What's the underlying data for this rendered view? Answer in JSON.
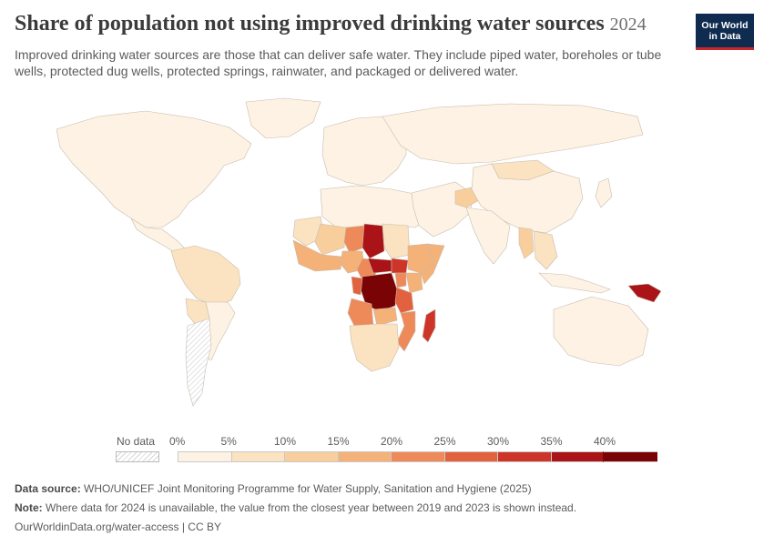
{
  "header": {
    "title": "Share of population not using improved drinking water sources",
    "year": "2024",
    "subtitle": "Improved drinking water sources are those that can deliver safe water. They include piped water, boreholes or tube wells, protected dug wells, protected springs, rainwater, and packaged or delivered water."
  },
  "logo": {
    "line1": "Our World",
    "line2": "in Data"
  },
  "legend": {
    "no_data_label": "No data",
    "bins": [
      {
        "label": "0%",
        "color": "#fdf2e3"
      },
      {
        "label": "5%",
        "color": "#fbe2c0"
      },
      {
        "label": "10%",
        "color": "#f8cf9c"
      },
      {
        "label": "15%",
        "color": "#f4b178"
      },
      {
        "label": "20%",
        "color": "#ee8a5a"
      },
      {
        "label": "25%",
        "color": "#e2623f"
      },
      {
        "label": "30%",
        "color": "#cc3528"
      },
      {
        "label": "35%",
        "color": "#aa1317"
      },
      {
        "label": "40%",
        "color": "#7a0306"
      }
    ]
  },
  "colors": {
    "no_data": "#e6e6e6",
    "border": "#ffffff",
    "outline": "#c7bcae"
  },
  "footer": {
    "source_label": "Data source:",
    "source_text": "WHO/UNICEF Joint Monitoring Programme for Water Supply, Sanitation and Hygiene (2025)",
    "note_label": "Note:",
    "note_text": "Where data for 2024 is unavailable, the value from the closest year between 2019 and 2023 is shown instead.",
    "link": "OurWorldinData.org/water-access | CC BY"
  },
  "map_data": {
    "regions": [
      {
        "name": "North America",
        "bin": 0
      },
      {
        "name": "Greenland",
        "bin": 0
      },
      {
        "name": "Central America",
        "bin": 0
      },
      {
        "name": "Northern South America",
        "bin": 1
      },
      {
        "name": "Bolivia",
        "bin": 1
      },
      {
        "name": "Southern South America",
        "bin": 0
      },
      {
        "name": "Argentina",
        "bin": -1
      },
      {
        "name": "Europe",
        "bin": 0
      },
      {
        "name": "Russia",
        "bin": 0
      },
      {
        "name": "North Africa",
        "bin": 0
      },
      {
        "name": "Mauritania",
        "bin": 1
      },
      {
        "name": "Mali",
        "bin": 2
      },
      {
        "name": "Niger",
        "bin": 4
      },
      {
        "name": "Chad",
        "bin": 7
      },
      {
        "name": "Sudan",
        "bin": 1
      },
      {
        "name": "West Africa",
        "bin": 3
      },
      {
        "name": "Nigeria",
        "bin": 3
      },
      {
        "name": "Cameroon",
        "bin": 4
      },
      {
        "name": "Central African Republic",
        "bin": 7
      },
      {
        "name": "South Sudan",
        "bin": 6
      },
      {
        "name": "Ethiopia",
        "bin": 3
      },
      {
        "name": "Somalia",
        "bin": 3
      },
      {
        "name": "DR Congo",
        "bin": 8
      },
      {
        "name": "Congo",
        "bin": 5
      },
      {
        "name": "Kenya",
        "bin": 3
      },
      {
        "name": "Uganda",
        "bin": 4
      },
      {
        "name": "Tanzania",
        "bin": 5
      },
      {
        "name": "Angola",
        "bin": 4
      },
      {
        "name": "Zambia",
        "bin": 3
      },
      {
        "name": "Mozambique",
        "bin": 4
      },
      {
        "name": "Southern Africa",
        "bin": 1
      },
      {
        "name": "Madagascar",
        "bin": 6
      },
      {
        "name": "Middle East",
        "bin": 0
      },
      {
        "name": "Afghanistan",
        "bin": 2
      },
      {
        "name": "Mongolia",
        "bin": 1
      },
      {
        "name": "China",
        "bin": 0
      },
      {
        "name": "South Asia",
        "bin": 0
      },
      {
        "name": "Myanmar",
        "bin": 2
      },
      {
        "name": "Southeast Asia",
        "bin": 1
      },
      {
        "name": "Indonesia",
        "bin": 0
      },
      {
        "name": "Papua New Guinea",
        "bin": 7
      },
      {
        "name": "Australia",
        "bin": 0
      },
      {
        "name": "Japan",
        "bin": 0
      }
    ]
  }
}
